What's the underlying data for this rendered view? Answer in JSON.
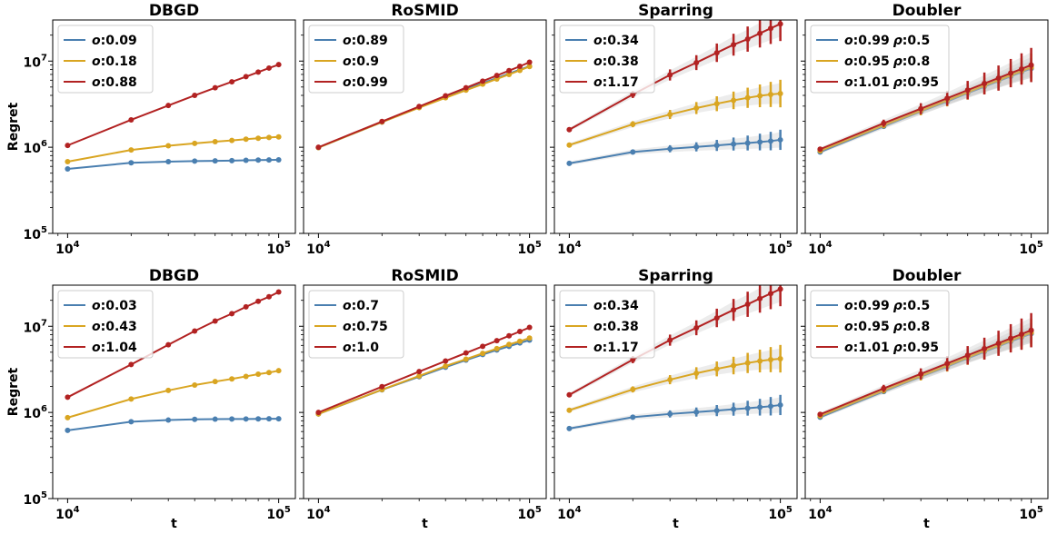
{
  "colors": {
    "blue": "#4a7fb0",
    "gold": "#d9a521",
    "red": "#b22222",
    "band": "#bfbfbf"
  },
  "chart_data": [
    {
      "type": "line",
      "title": "DBGD",
      "xlabel": "",
      "ylabel": "Regret",
      "xscale": "log",
      "yscale": "log",
      "xlim": [
        8500,
        120000
      ],
      "ylim": [
        100000,
        30000000
      ],
      "xticks": [
        "10^4",
        "10^5"
      ],
      "yticks": [
        "10^5",
        "10^6",
        "10^7"
      ],
      "legend_position": "top-left",
      "error_bars": false,
      "x": [
        10000,
        20000,
        30000,
        40000,
        50000,
        60000,
        70000,
        80000,
        90000,
        100000
      ],
      "series": [
        {
          "name": "o:0.09",
          "color": "blue",
          "values": [
            560000,
            660000,
            680000,
            690000,
            695000,
            700000,
            705000,
            710000,
            712000,
            715000
          ]
        },
        {
          "name": "o:0.18",
          "color": "gold",
          "values": [
            680000,
            930000,
            1040000,
            1110000,
            1160000,
            1200000,
            1240000,
            1270000,
            1300000,
            1320000
          ]
        },
        {
          "name": "o:0.88",
          "color": "red",
          "values": [
            1050000,
            2080000,
            3050000,
            4000000,
            4900000,
            5750000,
            6600000,
            7450000,
            8300000,
            9100000
          ]
        }
      ]
    },
    {
      "type": "line",
      "title": "RoSMID",
      "xlabel": "",
      "ylabel": "",
      "xscale": "log",
      "yscale": "log",
      "xlim": [
        8500,
        120000
      ],
      "ylim": [
        100000,
        30000000
      ],
      "xticks": [
        "10^4",
        "10^5"
      ],
      "yticks": [],
      "legend_position": "top-left",
      "error_bars": false,
      "x": [
        10000,
        20000,
        30000,
        40000,
        50000,
        60000,
        70000,
        80000,
        90000,
        100000
      ],
      "series": [
        {
          "name": "o:0.89",
          "color": "blue",
          "values": [
            990000,
            1960000,
            2900000,
            3800000,
            4700000,
            5550000,
            6350000,
            7150000,
            7950000,
            8700000
          ]
        },
        {
          "name": "o:0.9",
          "color": "gold",
          "values": [
            990000,
            1960000,
            2880000,
            3750000,
            4600000,
            5400000,
            6200000,
            7000000,
            7800000,
            8650000
          ]
        },
        {
          "name": "o:0.99",
          "color": "red",
          "values": [
            1000000,
            1990000,
            2970000,
            3950000,
            4900000,
            5850000,
            6800000,
            7750000,
            8700000,
            9700000
          ]
        }
      ]
    },
    {
      "type": "line",
      "title": "Sparring",
      "xlabel": "",
      "ylabel": "",
      "xscale": "log",
      "yscale": "log",
      "xlim": [
        8500,
        120000
      ],
      "ylim": [
        100000,
        30000000
      ],
      "xticks": [
        "10^4",
        "10^5"
      ],
      "yticks": [],
      "legend_position": "top-left",
      "error_bars": true,
      "x": [
        10000,
        20000,
        30000,
        40000,
        50000,
        60000,
        70000,
        80000,
        90000,
        100000
      ],
      "series": [
        {
          "name": "o:0.34",
          "color": "blue",
          "values": [
            650000,
            880000,
            960000,
            1010000,
            1050000,
            1090000,
            1120000,
            1150000,
            1180000,
            1220000
          ]
        },
        {
          "name": "o:0.38",
          "color": "gold",
          "values": [
            1060000,
            1850000,
            2400000,
            2850000,
            3200000,
            3500000,
            3750000,
            3950000,
            4100000,
            4200000
          ]
        },
        {
          "name": "o:1.17",
          "color": "red",
          "values": [
            1600000,
            4100000,
            6900000,
            9600000,
            12500000,
            15500000,
            18000000,
            21000000,
            24000000,
            27000000
          ]
        }
      ]
    },
    {
      "type": "line",
      "title": "Doubler",
      "xlabel": "",
      "ylabel": "",
      "xscale": "log",
      "yscale": "log",
      "xlim": [
        8500,
        120000
      ],
      "ylim": [
        100000,
        30000000
      ],
      "xticks": [
        "10^4",
        "10^5"
      ],
      "yticks": [],
      "legend_position": "top-left",
      "error_bars": true,
      "x": [
        10000,
        20000,
        30000,
        40000,
        50000,
        60000,
        70000,
        80000,
        90000,
        100000
      ],
      "series": [
        {
          "name": "o:0.99 ρ:0.5",
          "color": "blue",
          "values": [
            880000,
            1750000,
            2600000,
            3400000,
            4250000,
            5050000,
            5850000,
            6650000,
            7450000,
            8200000
          ]
        },
        {
          "name": "o:0.95 ρ:0.8",
          "color": "gold",
          "values": [
            910000,
            1800000,
            2650000,
            3500000,
            4350000,
            5200000,
            6000000,
            6850000,
            7650000,
            8450000
          ]
        },
        {
          "name": "o:1.01 ρ:0.95",
          "color": "red",
          "values": [
            950000,
            1900000,
            2800000,
            3700000,
            4600000,
            5500000,
            6350000,
            7250000,
            8100000,
            9000000
          ]
        }
      ]
    },
    {
      "type": "line",
      "title": "DBGD",
      "xlabel": "t",
      "ylabel": "Regret",
      "xscale": "log",
      "yscale": "log",
      "xlim": [
        8500,
        120000
      ],
      "ylim": [
        100000,
        30000000
      ],
      "xticks": [
        "10^4",
        "10^5"
      ],
      "yticks": [
        "10^5",
        "10^6",
        "10^7"
      ],
      "legend_position": "top-left",
      "error_bars": false,
      "x": [
        10000,
        20000,
        30000,
        40000,
        50000,
        60000,
        70000,
        80000,
        90000,
        100000
      ],
      "series": [
        {
          "name": "o:0.03",
          "color": "blue",
          "values": [
            620000,
            780000,
            815000,
            830000,
            835000,
            838000,
            840000,
            842000,
            843000,
            845000
          ]
        },
        {
          "name": "o:0.43",
          "color": "gold",
          "values": [
            870000,
            1430000,
            1800000,
            2080000,
            2280000,
            2450000,
            2620000,
            2780000,
            2900000,
            3050000
          ]
        },
        {
          "name": "o:1.04",
          "color": "red",
          "values": [
            1500000,
            3600000,
            6100000,
            8800000,
            11500000,
            14000000,
            16800000,
            19500000,
            22000000,
            25000000
          ]
        }
      ]
    },
    {
      "type": "line",
      "title": "RoSMID",
      "xlabel": "t",
      "ylabel": "",
      "xscale": "log",
      "yscale": "log",
      "xlim": [
        8500,
        120000
      ],
      "ylim": [
        100000,
        30000000
      ],
      "xticks": [
        "10^4",
        "10^5"
      ],
      "yticks": [],
      "legend_position": "top-left",
      "error_bars": false,
      "x": [
        10000,
        20000,
        30000,
        40000,
        50000,
        60000,
        70000,
        80000,
        90000,
        100000
      ],
      "series": [
        {
          "name": "o:0.7",
          "color": "blue",
          "values": [
            960000,
            1830000,
            2600000,
            3350000,
            4050000,
            4700000,
            5300000,
            5850000,
            6400000,
            6900000
          ]
        },
        {
          "name": "o:0.75",
          "color": "gold",
          "values": [
            960000,
            1840000,
            2650000,
            3450000,
            4150000,
            4850000,
            5500000,
            6150000,
            6700000,
            7300000
          ]
        },
        {
          "name": "o:1.0",
          "color": "red",
          "values": [
            1000000,
            1990000,
            2980000,
            3950000,
            4900000,
            5850000,
            6800000,
            7750000,
            8700000,
            9700000
          ]
        }
      ]
    },
    {
      "type": "line",
      "title": "Sparring",
      "xlabel": "t",
      "ylabel": "",
      "xscale": "log",
      "yscale": "log",
      "xlim": [
        8500,
        120000
      ],
      "ylim": [
        100000,
        30000000
      ],
      "xticks": [
        "10^4",
        "10^5"
      ],
      "yticks": [],
      "legend_position": "top-left",
      "error_bars": true,
      "x": [
        10000,
        20000,
        30000,
        40000,
        50000,
        60000,
        70000,
        80000,
        90000,
        100000
      ],
      "series": [
        {
          "name": "o:0.34",
          "color": "blue",
          "values": [
            650000,
            880000,
            960000,
            1010000,
            1050000,
            1090000,
            1120000,
            1150000,
            1180000,
            1220000
          ]
        },
        {
          "name": "o:0.38",
          "color": "gold",
          "values": [
            1060000,
            1850000,
            2400000,
            2850000,
            3200000,
            3500000,
            3750000,
            3950000,
            4100000,
            4200000
          ]
        },
        {
          "name": "o:1.17",
          "color": "red",
          "values": [
            1600000,
            4100000,
            6900000,
            9600000,
            12500000,
            15500000,
            18000000,
            21000000,
            24000000,
            27000000
          ]
        }
      ]
    },
    {
      "type": "line",
      "title": "Doubler",
      "xlabel": "t",
      "ylabel": "",
      "xscale": "log",
      "yscale": "log",
      "xlim": [
        8500,
        120000
      ],
      "ylim": [
        100000,
        30000000
      ],
      "xticks": [
        "10^4",
        "10^5"
      ],
      "yticks": [],
      "legend_position": "top-left",
      "error_bars": true,
      "x": [
        10000,
        20000,
        30000,
        40000,
        50000,
        60000,
        70000,
        80000,
        90000,
        100000
      ],
      "series": [
        {
          "name": "o:0.99 ρ:0.5",
          "color": "blue",
          "values": [
            880000,
            1750000,
            2600000,
            3400000,
            4250000,
            5050000,
            5850000,
            6650000,
            7450000,
            8200000
          ]
        },
        {
          "name": "o:0.95 ρ:0.8",
          "color": "gold",
          "values": [
            910000,
            1800000,
            2650000,
            3500000,
            4350000,
            5200000,
            6000000,
            6850000,
            7650000,
            8450000
          ]
        },
        {
          "name": "o:1.01 ρ:0.95",
          "color": "red",
          "values": [
            950000,
            1900000,
            2800000,
            3700000,
            4600000,
            5500000,
            6350000,
            7250000,
            8100000,
            9000000
          ]
        }
      ]
    }
  ]
}
